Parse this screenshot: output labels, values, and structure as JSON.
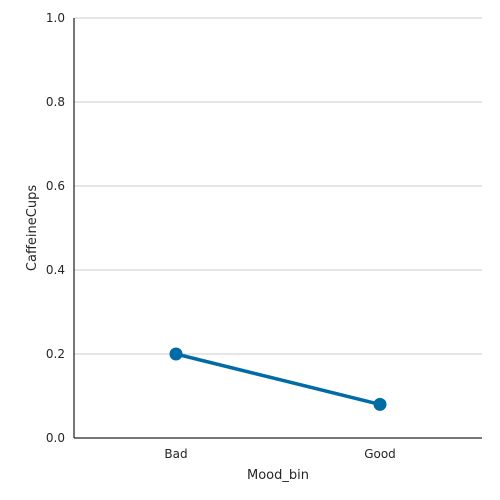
{
  "chart_data": {
    "type": "line",
    "categories": [
      "Bad",
      "Good"
    ],
    "values": [
      0.2,
      0.08
    ],
    "xlabel": "Mood_bin",
    "ylabel": "CaffeineCups",
    "ylim": [
      0,
      1.0
    ],
    "yticks": [
      "0.0",
      "0.2",
      "0.4",
      "0.6",
      "0.8",
      "1.0"
    ],
    "grid": "horizontal",
    "color": "#006ba4"
  }
}
